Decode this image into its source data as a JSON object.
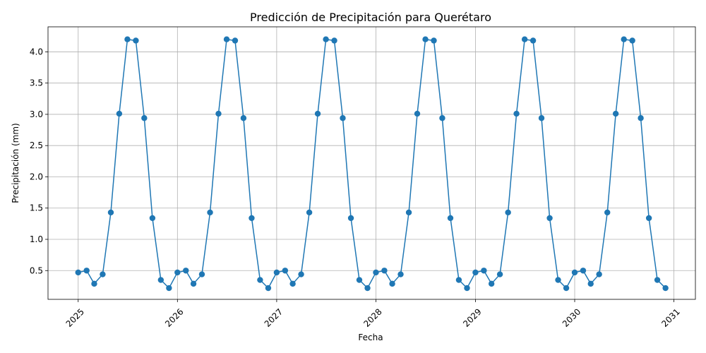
{
  "chart_data": {
    "type": "line",
    "title": "Predicción de Precipitación para Querétaro",
    "xlabel": "Fecha",
    "ylabel": "Precipitación (mm)",
    "x_ticks": [
      "2025",
      "2026",
      "2027",
      "2028",
      "2029",
      "2030",
      "2031"
    ],
    "y_ticks": [
      "0.5",
      "1.0",
      "1.5",
      "2.0",
      "2.5",
      "3.0",
      "3.5",
      "4.0"
    ],
    "xlim": [
      "2024-09-12",
      "2031-03-21"
    ],
    "ylim": [
      0.04,
      4.4
    ],
    "grid": true,
    "color": "#1f77b4",
    "x": [
      "2025-01-01",
      "2025-02-01",
      "2025-03-01",
      "2025-04-01",
      "2025-05-01",
      "2025-06-01",
      "2025-07-01",
      "2025-08-01",
      "2025-09-01",
      "2025-10-01",
      "2025-11-01",
      "2025-12-01",
      "2026-01-01",
      "2026-02-01",
      "2026-03-01",
      "2026-04-01",
      "2026-05-01",
      "2026-06-01",
      "2026-07-01",
      "2026-08-01",
      "2026-09-01",
      "2026-10-01",
      "2026-11-01",
      "2026-12-01",
      "2027-01-01",
      "2027-02-01",
      "2027-03-01",
      "2027-04-01",
      "2027-05-01",
      "2027-06-01",
      "2027-07-01",
      "2027-08-01",
      "2027-09-01",
      "2027-10-01",
      "2027-11-01",
      "2027-12-01",
      "2028-01-01",
      "2028-02-01",
      "2028-03-01",
      "2028-04-01",
      "2028-05-01",
      "2028-06-01",
      "2028-07-01",
      "2028-08-01",
      "2028-09-01",
      "2028-10-01",
      "2028-11-01",
      "2028-12-01",
      "2029-01-01",
      "2029-02-01",
      "2029-03-01",
      "2029-04-01",
      "2029-05-01",
      "2029-06-01",
      "2029-07-01",
      "2029-08-01",
      "2029-09-01",
      "2029-10-01",
      "2029-11-01",
      "2029-12-01",
      "2030-01-01",
      "2030-02-01",
      "2030-03-01",
      "2030-04-01",
      "2030-05-01",
      "2030-06-01",
      "2030-07-01",
      "2030-08-01",
      "2030-09-01",
      "2030-10-01",
      "2030-11-01",
      "2030-12-01"
    ],
    "values": [
      0.47,
      0.5,
      0.29,
      0.44,
      1.43,
      3.01,
      4.2,
      4.18,
      2.94,
      1.34,
      0.35,
      0.22,
      0.47,
      0.5,
      0.29,
      0.44,
      1.43,
      3.01,
      4.2,
      4.18,
      2.94,
      1.34,
      0.35,
      0.22,
      0.47,
      0.5,
      0.29,
      0.44,
      1.43,
      3.01,
      4.2,
      4.18,
      2.94,
      1.34,
      0.35,
      0.22,
      0.47,
      0.5,
      0.29,
      0.44,
      1.43,
      3.01,
      4.2,
      4.18,
      2.94,
      1.34,
      0.35,
      0.22,
      0.47,
      0.5,
      0.29,
      0.44,
      1.43,
      3.01,
      4.2,
      4.18,
      2.94,
      1.34,
      0.35,
      0.22,
      0.47,
      0.5,
      0.29,
      0.44,
      1.43,
      3.01,
      4.2,
      4.18,
      2.94,
      1.34,
      0.35,
      0.22
    ]
  }
}
